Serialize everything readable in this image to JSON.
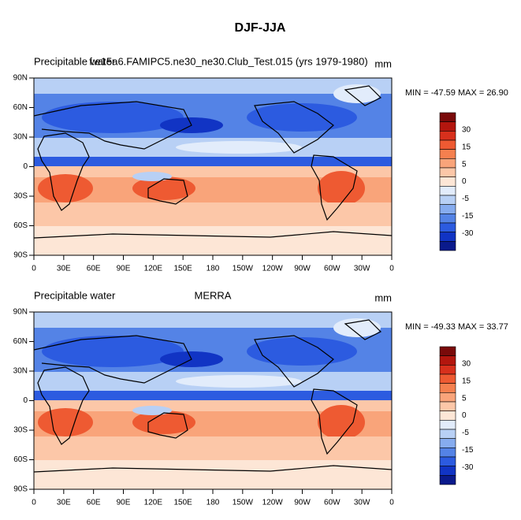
{
  "title": "DJF-JJA",
  "panels": [
    {
      "left_string": "Precipitable water",
      "center_string": "f.e15a6.FAMIPC5.ne30_ne30.Club_Test.015 (yrs 1979-1980)",
      "units": "mm",
      "minmax": "MIN = -47.59 MAX =  26.90",
      "xlim": [
        0,
        360
      ],
      "ylim": [
        -90,
        90
      ],
      "xticks": [
        0,
        {
          "value": 30,
          "label": "30E"
        },
        {
          "value": 60,
          "label": "60E"
        },
        {
          "value": 90,
          "label": "90E"
        },
        {
          "value": 120,
          "label": "120E"
        },
        {
          "value": 150,
          "label": "150E"
        },
        180,
        {
          "value": 210,
          "label": "150W"
        },
        {
          "value": 240,
          "label": "120W"
        },
        {
          "value": 270,
          "label": "90W"
        },
        {
          "value": 300,
          "label": "60W"
        },
        {
          "value": 330,
          "label": "30W"
        },
        {
          "value": 360,
          "label": "0"
        }
      ],
      "yticks": [
        {
          "value": 90,
          "label": "90N"
        },
        {
          "value": 60,
          "label": "60N"
        },
        {
          "value": 30,
          "label": "30N"
        },
        0,
        {
          "value": -30,
          "label": "30S"
        },
        {
          "value": -60,
          "label": "60S"
        },
        {
          "value": -90,
          "label": "90S"
        }
      ],
      "colorbar_labels": [
        30,
        15,
        5,
        0,
        -5,
        -15,
        -30
      ]
    },
    {
      "left_string": "Precipitable water",
      "center_string": "MERRA",
      "units": "mm",
      "minmax": "MIN = -49.33 MAX =  33.77",
      "xlim": [
        0,
        360
      ],
      "ylim": [
        -90,
        90
      ],
      "xticks": [
        0,
        {
          "value": 30,
          "label": "30E"
        },
        {
          "value": 60,
          "label": "60E"
        },
        {
          "value": 90,
          "label": "90E"
        },
        {
          "value": 120,
          "label": "120E"
        },
        {
          "value": 150,
          "label": "150E"
        },
        180,
        {
          "value": 210,
          "label": "150W"
        },
        {
          "value": 240,
          "label": "120W"
        },
        {
          "value": 270,
          "label": "90W"
        },
        {
          "value": 300,
          "label": "60W"
        },
        {
          "value": 330,
          "label": "30W"
        },
        {
          "value": 360,
          "label": "0"
        }
      ],
      "yticks": [
        {
          "value": 90,
          "label": "90N"
        },
        {
          "value": 60,
          "label": "60N"
        },
        {
          "value": 30,
          "label": "30N"
        },
        0,
        {
          "value": -30,
          "label": "30S"
        },
        {
          "value": -60,
          "label": "60S"
        },
        {
          "value": -90,
          "label": "90S"
        }
      ],
      "colorbar_labels": [
        30,
        15,
        5,
        0,
        -5,
        -15,
        -30
      ]
    }
  ],
  "colorbar_colors": [
    "#7a0a0a",
    "#b3160e",
    "#d8301c",
    "#ee5a32",
    "#f5804f",
    "#f9a47a",
    "#fcc7a8",
    "#fde6d6",
    "#e2ecfb",
    "#b8d0f5",
    "#86acef",
    "#5483e6",
    "#2c5be0",
    "#1134c4",
    "#0a1a8c"
  ]
}
